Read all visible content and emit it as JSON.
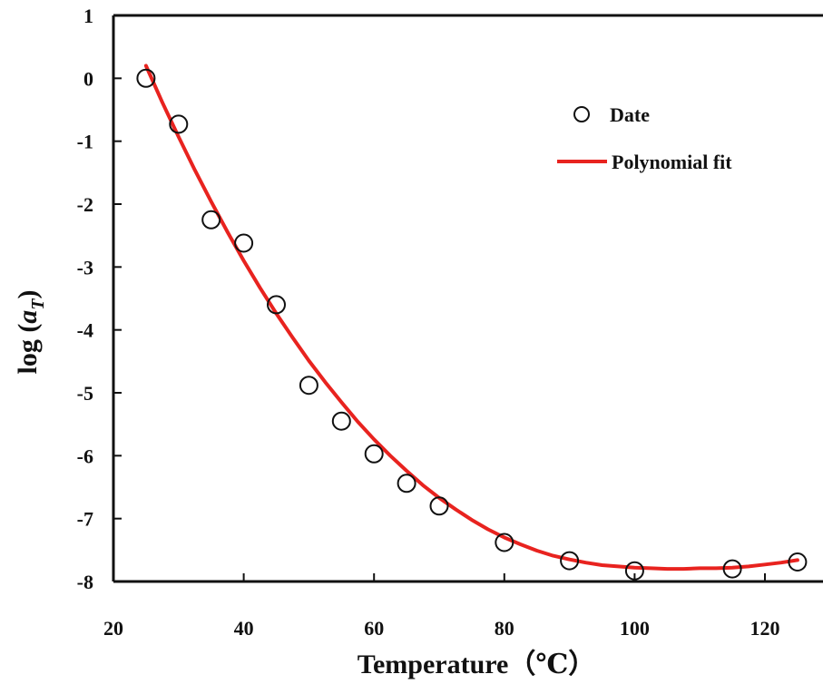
{
  "chart_data": {
    "type": "scatter",
    "xlabel": "Temperature（℃）",
    "ylabel": "log (a_T)",
    "ylabel_main": "log (",
    "ylabel_var": "a",
    "ylabel_sub": "T",
    "ylabel_close": ")",
    "xlim": [
      20,
      125
    ],
    "ylim": [
      -8,
      1
    ],
    "xticks": [
      20,
      40,
      60,
      80,
      100,
      120
    ],
    "yticks": [
      1,
      0,
      -1,
      -2,
      -3,
      -4,
      -5,
      -6,
      -7,
      -8
    ],
    "grid": false,
    "legend_position": "top-right",
    "series": [
      {
        "name": "Date",
        "kind": "markers",
        "marker": "open-circle",
        "color": "#111111",
        "x": [
          25,
          30,
          35,
          40,
          45,
          50,
          55,
          60,
          65,
          70,
          80,
          90,
          100,
          115,
          125
        ],
        "y": [
          0.0,
          -0.73,
          -2.25,
          -2.62,
          -3.6,
          -4.88,
          -5.45,
          -5.97,
          -6.44,
          -6.8,
          -7.38,
          -7.67,
          -7.83,
          -7.8,
          -7.69
        ]
      },
      {
        "name": "Polynomial fit",
        "kind": "line",
        "color": "#e8231f",
        "x": [
          25,
          27.5,
          30,
          32.5,
          35,
          37.5,
          40,
          42.5,
          45,
          47.5,
          50,
          52.5,
          55,
          57.5,
          60,
          62.5,
          65,
          67.5,
          70,
          72.5,
          75,
          77.5,
          80,
          82.5,
          85,
          87.5,
          90,
          92.5,
          95,
          97.5,
          100,
          102.5,
          105,
          107.5,
          110,
          112.5,
          115,
          117.5,
          120,
          122.5,
          125
        ],
        "y": [
          0.2,
          -0.38,
          -0.93,
          -1.46,
          -1.96,
          -2.44,
          -2.9,
          -3.33,
          -3.74,
          -4.12,
          -4.49,
          -4.83,
          -5.15,
          -5.46,
          -5.74,
          -6.0,
          -6.24,
          -6.47,
          -6.67,
          -6.85,
          -7.02,
          -7.17,
          -7.3,
          -7.41,
          -7.51,
          -7.59,
          -7.65,
          -7.7,
          -7.74,
          -7.76,
          -7.78,
          -7.79,
          -7.8,
          -7.8,
          -7.79,
          -7.79,
          -7.78,
          -7.76,
          -7.73,
          -7.7,
          -7.66
        ]
      }
    ]
  }
}
